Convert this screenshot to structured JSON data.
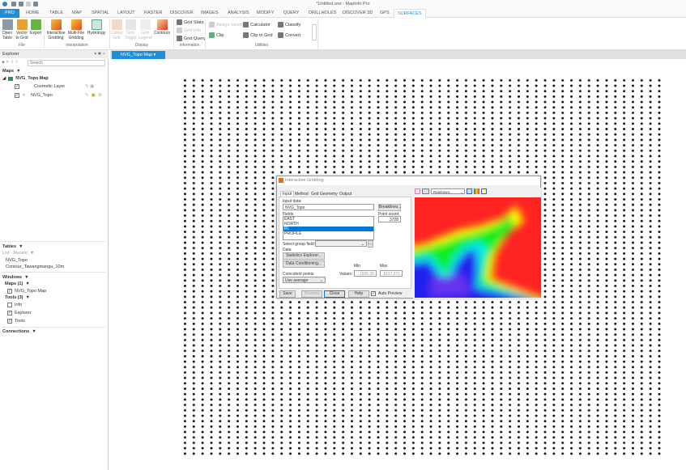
{
  "window": {
    "title": "*Untitled.wor - MapInfo Pro"
  },
  "ribbon_tabs": [
    "PRO",
    "HOME",
    "TABLE",
    "MAP",
    "SPATIAL",
    "LAYOUT",
    "RASTER",
    "DISCOVER",
    "IMAGES",
    "ANALYSIS",
    "MODIFY",
    "QUERY",
    "DRILLHOLES",
    "DISCOVER 3D",
    "GPS",
    "SURFACES"
  ],
  "ribbon": {
    "file": {
      "label": "File",
      "buttons": [
        "Open Table",
        "Vector to Grid",
        "Export"
      ]
    },
    "interpolation": {
      "label": "Interpolation",
      "buttons": [
        "Interactive Gridding",
        "Multi-File Gridding",
        "Hydrology"
      ]
    },
    "display": {
      "label": "Display",
      "buttons": [
        "Colour Grid",
        "Grid Toggle",
        "Grid Legend",
        "Contours"
      ]
    },
    "information": {
      "label": "Information",
      "buttons": [
        "Grid Stats",
        "Grid Info",
        "Grid Query"
      ]
    },
    "utilities": {
      "label": "Utilities",
      "buttons": [
        "Assign Values",
        "Clip",
        "Calculator",
        "Clip to Grid",
        "Classify",
        "Convert"
      ]
    }
  },
  "explorer": {
    "title": "Explorer",
    "search_placeholder": "Search",
    "maps_header": "Maps",
    "map_name": "NVG_Topo Map",
    "layers": [
      "Cosmetic Layer",
      "NVG_Topo"
    ],
    "tables_header": "Tables",
    "tables_filter": "List - Recent",
    "tables": [
      "NVG_Topo",
      "Contour_Tawangmangu_10m"
    ],
    "windows_header": "Windows",
    "maps_group": "Maps (1)",
    "map_windows": [
      "NVG_Topo Map"
    ],
    "tools_group": "Tools (3)",
    "tools": [
      {
        "label": "Info",
        "checked": false
      },
      {
        "label": "Explorer",
        "checked": true
      },
      {
        "label": "Tools",
        "checked": true
      }
    ],
    "connections_header": "Connections"
  },
  "document_tab": "NVG_Topo Map",
  "dialog": {
    "title": "Interactive Gridding",
    "tabs": [
      "Input",
      "Method",
      "Grid Geometry",
      "Output"
    ],
    "input_data_label": "Input data:",
    "input_data": "NVG_Topo",
    "breaklines": "Breaklines...",
    "fields_label": "Fields",
    "fields": [
      "EAST",
      "NORTH",
      "RL",
      "PROFILE"
    ],
    "selected_field": "RL",
    "point_count_label": "Point count:",
    "point_count": "3728",
    "group_field_label": "Select group field:",
    "data_label": "Data",
    "stats_btn": "Statistics Explorer...",
    "cond_btn": "Data Conditioning...",
    "min_label": "Min",
    "max_label": "Max",
    "values_label": "Values:",
    "min": "1505.35",
    "max": "1637.271",
    "coincident_label": "Coincident points",
    "coincident": "Use average",
    "buttons": [
      "Save",
      "Preview",
      "Close",
      "Help"
    ],
    "auto_preview": "Auto Preview",
    "colour_table": "Rainbow4..."
  }
}
